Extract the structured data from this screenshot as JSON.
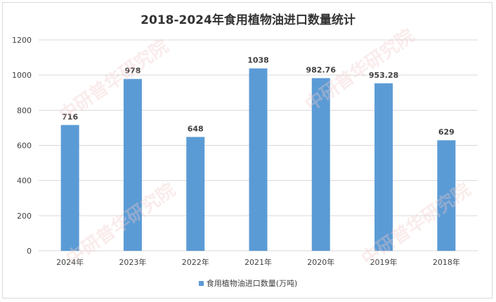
{
  "chart_data": {
    "type": "bar",
    "title": "2018-2024年食用植物油进口数量统计",
    "categories": [
      "2024年",
      "2023年",
      "2022年",
      "2021年",
      "2020年",
      "2019年",
      "2018年"
    ],
    "series": [
      {
        "name": "食用植物油进口数量(万吨)",
        "values": [
          716,
          978,
          648,
          1038,
          982.76,
          953.28,
          629
        ]
      }
    ],
    "data_labels": [
      "716",
      "978",
      "648",
      "1038",
      "982.76",
      "953.28",
      "629"
    ],
    "ylim": [
      0,
      1200
    ],
    "yticks": [
      0,
      200,
      400,
      600,
      800,
      1000,
      1200
    ],
    "grid": true,
    "legend": "bottom",
    "bar_color": "#5b9bd5"
  },
  "watermark": {
    "text": "中研普华研究院",
    "url": "ChinaIRN.COM"
  }
}
